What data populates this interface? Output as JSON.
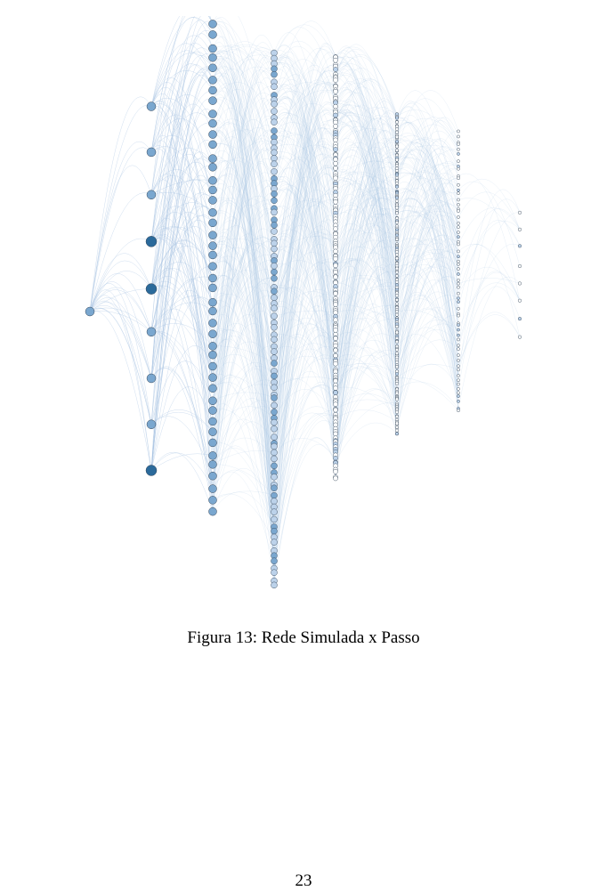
{
  "figure": {
    "caption": "Figura 13: Rede Simulada x Passo",
    "node_colors": {
      "dark": "#2b6a9b",
      "medium": "#7aa7cf",
      "light": "#bcd2ea",
      "outline": "#36475a",
      "edge": "#a9c4e2"
    },
    "columns": [
      {
        "step": 0,
        "node_count": 1
      },
      {
        "step": 1,
        "node_count": 9
      },
      {
        "step": 2,
        "node_count": 45
      },
      {
        "step": 3,
        "node_count": 90
      },
      {
        "step": 4,
        "node_count": 150
      },
      {
        "step": 5,
        "node_count": 170
      },
      {
        "step": 6,
        "node_count": 60
      },
      {
        "step": 7,
        "node_count": 8
      }
    ]
  },
  "page": {
    "number": "23"
  }
}
